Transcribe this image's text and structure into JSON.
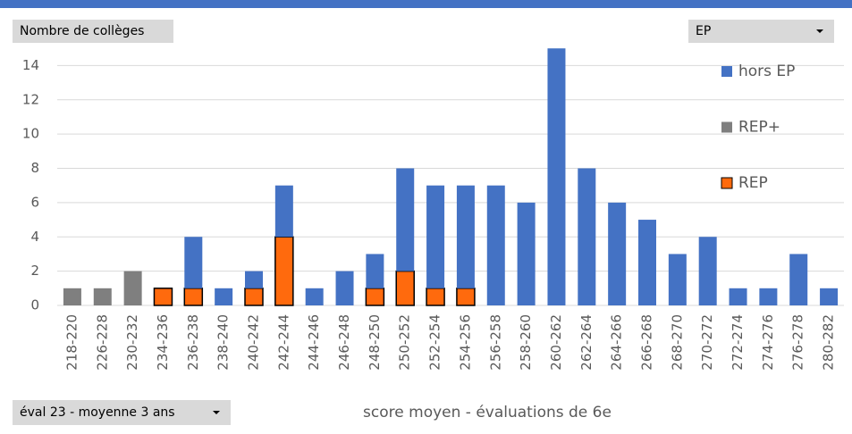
{
  "field_buttons": {
    "values_field": "Nombre de collèges",
    "legend_field": "EP",
    "filter_field": "éval 23 - moyenne 3 ans"
  },
  "chart_data": {
    "type": "stacked_bar",
    "x_label": "score moyen - évaluations de 6e",
    "categories": [
      "218-220",
      "226-228",
      "230-232",
      "234-236",
      "236-238",
      "238-240",
      "240-242",
      "242-244",
      "244-246",
      "246-248",
      "248-250",
      "250-252",
      "252-254",
      "254-256",
      "256-258",
      "258-260",
      "260-262",
      "262-264",
      "264-266",
      "266-268",
      "268-270",
      "270-272",
      "272-274",
      "274-276",
      "276-278",
      "280-282"
    ],
    "series": [
      {
        "name": "hors EP",
        "color": "#4472c4",
        "values": [
          null,
          null,
          null,
          null,
          3,
          1,
          1,
          3,
          1,
          2,
          2,
          6,
          6,
          6,
          7,
          6,
          15,
          8,
          6,
          5,
          3,
          4,
          1,
          1,
          3,
          1
        ]
      },
      {
        "name": "REP+",
        "color": "#7f7f7f",
        "values": [
          1,
          1,
          2,
          null,
          null,
          null,
          null,
          null,
          null,
          null,
          null,
          null,
          null,
          null,
          null,
          null,
          null,
          null,
          null,
          null,
          null,
          null,
          null,
          null,
          null,
          null
        ]
      },
      {
        "name": "REP",
        "color": "#ff6a0d",
        "values": [
          null,
          null,
          null,
          1,
          1,
          null,
          1,
          4,
          null,
          null,
          1,
          2,
          1,
          1,
          null,
          null,
          null,
          null,
          null,
          null,
          null,
          null,
          null,
          null,
          null,
          null
        ]
      }
    ],
    "stack_order": [
      "REP+",
      "REP",
      "hors EP"
    ],
    "ylim": [
      0,
      16
    ],
    "yticks": [
      0,
      2,
      4,
      6,
      8,
      10,
      12,
      14
    ],
    "grid": true,
    "legend": "right"
  }
}
